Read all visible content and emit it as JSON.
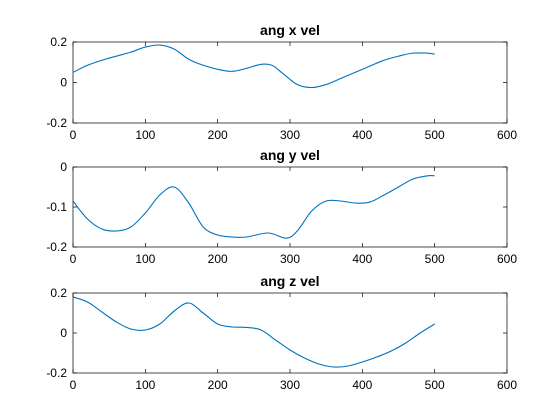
{
  "chart_data": [
    {
      "type": "line",
      "title": "ang x vel",
      "xlim": [
        0,
        600
      ],
      "ylim": [
        -0.2,
        0.2
      ],
      "xticks": [
        "0",
        "100",
        "200",
        "300",
        "400",
        "500",
        "600"
      ],
      "yticks": [
        "-0.2",
        "0",
        "0.2"
      ],
      "series": [
        {
          "color": "#0072bd",
          "x": [
            0,
            20,
            40,
            60,
            80,
            100,
            120,
            140,
            160,
            180,
            200,
            220,
            240,
            260,
            275,
            290,
            310,
            330,
            350,
            370,
            390,
            410,
            430,
            450,
            470,
            490,
            500
          ],
          "y": [
            0.05,
            0.085,
            0.11,
            0.13,
            0.15,
            0.175,
            0.185,
            0.165,
            0.115,
            0.085,
            0.065,
            0.055,
            0.07,
            0.09,
            0.085,
            0.045,
            -0.01,
            -0.025,
            -0.01,
            0.02,
            0.05,
            0.08,
            0.11,
            0.13,
            0.145,
            0.145,
            0.14
          ]
        }
      ]
    },
    {
      "type": "line",
      "title": "ang y vel",
      "xlim": [
        0,
        600
      ],
      "ylim": [
        -0.2,
        0
      ],
      "xticks": [
        "0",
        "100",
        "200",
        "300",
        "400",
        "500",
        "600"
      ],
      "yticks": [
        "-0.2",
        "-0.1",
        "0"
      ],
      "series": [
        {
          "color": "#0072bd",
          "x": [
            0,
            20,
            40,
            60,
            80,
            100,
            120,
            140,
            160,
            180,
            200,
            220,
            240,
            270,
            295,
            310,
            330,
            350,
            370,
            390,
            410,
            430,
            450,
            470,
            490,
            500
          ],
          "y": [
            -0.085,
            -0.13,
            -0.155,
            -0.16,
            -0.15,
            -0.115,
            -0.07,
            -0.05,
            -0.09,
            -0.15,
            -0.17,
            -0.175,
            -0.175,
            -0.165,
            -0.178,
            -0.16,
            -0.11,
            -0.085,
            -0.085,
            -0.09,
            -0.088,
            -0.07,
            -0.05,
            -0.03,
            -0.022,
            -0.022
          ]
        }
      ]
    },
    {
      "type": "line",
      "title": "ang z vel",
      "xlim": [
        0,
        600
      ],
      "ylim": [
        -0.2,
        0.2
      ],
      "xticks": [
        "0",
        "100",
        "200",
        "300",
        "400",
        "500",
        "600"
      ],
      "yticks": [
        "-0.2",
        "0",
        "0.2"
      ],
      "series": [
        {
          "color": "#0072bd",
          "x": [
            0,
            20,
            40,
            60,
            80,
            100,
            120,
            140,
            160,
            180,
            200,
            220,
            240,
            260,
            280,
            300,
            320,
            340,
            360,
            380,
            400,
            420,
            440,
            460,
            480,
            500
          ],
          "y": [
            0.18,
            0.155,
            0.105,
            0.055,
            0.02,
            0.015,
            0.045,
            0.11,
            0.15,
            0.1,
            0.045,
            0.03,
            0.028,
            0.015,
            -0.035,
            -0.085,
            -0.125,
            -0.155,
            -0.17,
            -0.165,
            -0.145,
            -0.12,
            -0.09,
            -0.05,
            0.0,
            0.045
          ]
        }
      ]
    }
  ]
}
